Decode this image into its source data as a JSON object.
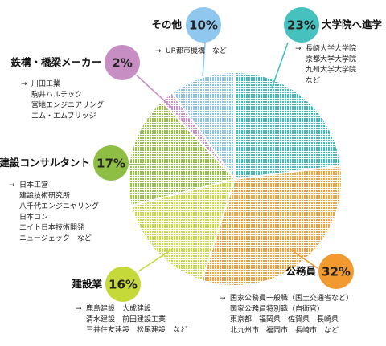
{
  "chart_data": {
    "type": "pie",
    "title": "",
    "slices": [
      {
        "name": "大学院へ進学",
        "percent": 23,
        "label": "23%",
        "color": "#3dbcb8",
        "bubble": "#46c1bd",
        "examples": [
          "長崎大学大学院",
          "京都大学大学院",
          "九州大学大学院",
          "など"
        ]
      },
      {
        "name": "公務員",
        "percent": 32,
        "label": "32%",
        "color": "#f5a13c",
        "bubble": "#f29a30",
        "examples": [
          "国家公務員一般職（国土交通省など）",
          "国家公務員特別職（自衛官）",
          "東京都　福岡県　佐賀県　長崎県",
          "北九州市　福岡市　長崎市　など"
        ]
      },
      {
        "name": "建設業",
        "percent": 16,
        "label": "16%",
        "color": "#c8da45",
        "bubble": "#c5d93a",
        "examples": [
          "鹿島建設　大成建設",
          "清水建設　前田建設工業",
          "三井住友建設　松尾建設　など"
        ]
      },
      {
        "name": "建設コンサルタント",
        "percent": 17,
        "label": "17%",
        "color": "#98c24a",
        "bubble": "#8fbe45",
        "examples": [
          "日本工営",
          "建設技術研究所",
          "八千代エンジニヤリング",
          "日本コン",
          "エイト日本技術開発",
          "ニュージェック　など"
        ]
      },
      {
        "name": "鉄構・橋梁メーカー",
        "percent": 2,
        "label": "2%",
        "color": "#c98fc6",
        "bubble": "#c78ec4",
        "examples": [
          "川田工業",
          "駒井ハルテック",
          "宮地エンジニアリング",
          "エム・エムブリッジ"
        ]
      },
      {
        "name": "その他",
        "percent": 10,
        "label": "10%",
        "color": "#8cc3ea",
        "bubble": "#8fc7ee",
        "examples": [
          "UR都市機構　など"
        ]
      }
    ]
  }
}
